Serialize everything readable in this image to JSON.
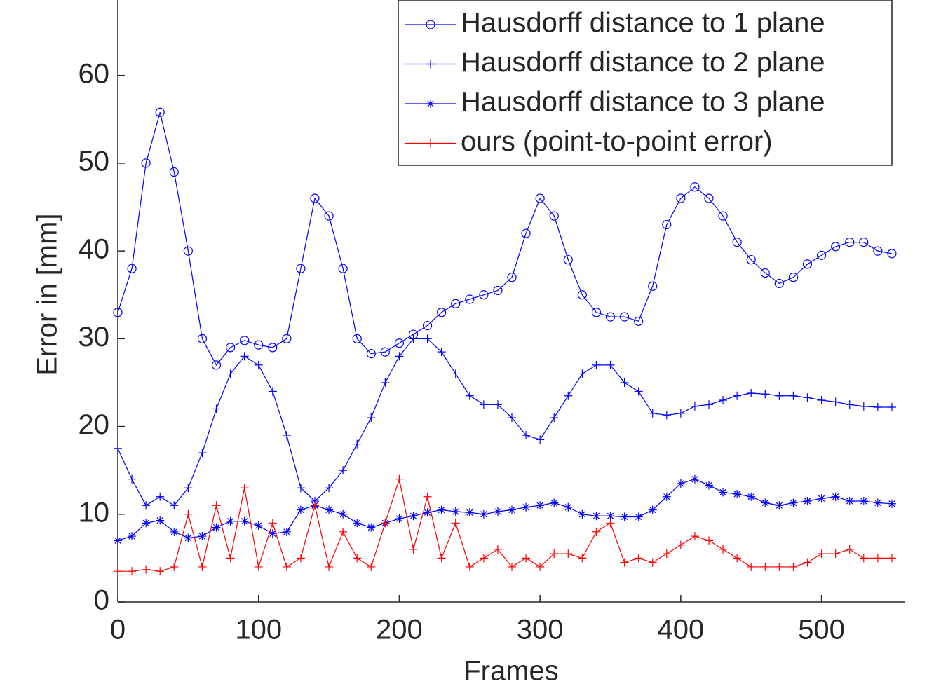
{
  "chart_data": {
    "type": "line",
    "xlabel": "Frames",
    "ylabel": "Error in [mm]",
    "xlim": [
      0,
      559
    ],
    "ylim": [
      0,
      68.6
    ],
    "xticks": [
      0,
      100,
      200,
      300,
      400,
      500
    ],
    "yticks": [
      0,
      10,
      20,
      30,
      40,
      50,
      60
    ],
    "legend": "upper right",
    "x": [
      0,
      10,
      20,
      30,
      40,
      50,
      60,
      70,
      80,
      90,
      100,
      110,
      120,
      130,
      140,
      150,
      160,
      170,
      180,
      190,
      200,
      210,
      220,
      230,
      240,
      250,
      260,
      270,
      280,
      290,
      300,
      310,
      320,
      330,
      340,
      350,
      360,
      370,
      380,
      390,
      400,
      410,
      420,
      430,
      440,
      450,
      460,
      470,
      480,
      490,
      500,
      510,
      520,
      530,
      540,
      550
    ],
    "series": [
      {
        "name": "Hausdorff distance to 1 plane",
        "color": "#0000ff",
        "marker": "circle",
        "values": [
          33,
          38,
          50,
          55.8,
          49,
          40,
          30,
          27,
          29,
          29.8,
          29.3,
          29,
          30,
          38,
          46,
          44,
          38,
          30,
          28.3,
          28.5,
          29.5,
          30.5,
          31.5,
          33,
          34,
          34.5,
          35,
          35.5,
          37,
          42,
          46,
          44,
          39,
          35,
          33,
          32.5,
          32.5,
          32,
          36,
          43,
          46,
          47.3,
          46,
          44,
          41,
          39,
          37.5,
          36.3,
          37,
          38.5,
          39.5,
          40.5,
          41,
          41,
          40,
          39.7
        ]
      },
      {
        "name": "Hausdorff distance to 2 plane",
        "color": "#0000ff",
        "marker": "plus",
        "values": [
          17.5,
          14,
          11,
          12,
          11,
          13,
          17,
          22,
          26,
          28,
          27,
          24,
          19,
          13,
          11.5,
          13,
          15,
          18,
          21,
          25,
          28,
          30,
          30,
          28.5,
          26,
          23.5,
          22.5,
          22.5,
          21,
          19,
          18.5,
          21,
          23.5,
          26,
          27,
          27,
          25,
          24,
          21.5,
          21.3,
          21.5,
          22.3,
          22.5,
          23,
          23.5,
          23.8,
          23.7,
          23.5,
          23.5,
          23.3,
          23,
          22.8,
          22.5,
          22.3,
          22.2,
          22.2
        ]
      },
      {
        "name": "Hausdorff distance to 3 plane",
        "color": "#0000ff",
        "marker": "star",
        "values": [
          7,
          7.5,
          9,
          9.3,
          8,
          7.3,
          7.5,
          8.5,
          9.2,
          9.2,
          8.7,
          7.8,
          8,
          10.5,
          11,
          10.5,
          10,
          9,
          8.5,
          9,
          9.5,
          9.8,
          10.2,
          10.5,
          10.3,
          10.2,
          10,
          10.3,
          10.5,
          10.8,
          11,
          11.3,
          10.8,
          10,
          9.8,
          9.8,
          9.7,
          9.7,
          10.5,
          12,
          13.5,
          14,
          13.3,
          12.5,
          12.3,
          12,
          11.3,
          11,
          11.3,
          11.5,
          11.8,
          12,
          11.5,
          11.5,
          11.3,
          11.2
        ]
      },
      {
        "name": "ours (point-to-point error)",
        "color": "#ff0000",
        "marker": "plus",
        "values": [
          3.5,
          3.5,
          3.7,
          3.5,
          4,
          10,
          4,
          11,
          5,
          13,
          4,
          9,
          4,
          5,
          11,
          4,
          8,
          5,
          4,
          9,
          14,
          6,
          12,
          5,
          9,
          4,
          5,
          6,
          4,
          5,
          4,
          5.5,
          5.5,
          5,
          8,
          9,
          4.5,
          5,
          4.5,
          5.5,
          6.5,
          7.5,
          7,
          6,
          5,
          4,
          4,
          4,
          4,
          4.5,
          5.5,
          5.5,
          6,
          5,
          5,
          5
        ]
      }
    ]
  }
}
